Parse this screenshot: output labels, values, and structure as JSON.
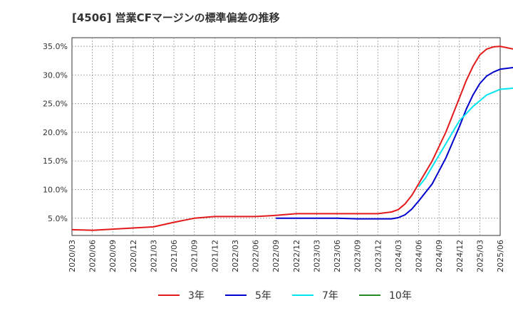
{
  "chart_data": {
    "type": "line",
    "title": "[4506]  営業CFマージンの標準偏差の推移",
    "xlabel": "",
    "ylabel": "",
    "ylim": [
      2.0,
      36.5
    ],
    "grid": true,
    "legend_position": "bottom",
    "y_ticks": [
      "5.0%",
      "10.0%",
      "15.0%",
      "20.0%",
      "25.0%",
      "30.0%",
      "35.0%"
    ],
    "y_tick_values": [
      5,
      10,
      15,
      20,
      25,
      30,
      35
    ],
    "x_ticks": [
      "2020/03",
      "2020/06",
      "2020/09",
      "2020/12",
      "2021/03",
      "2021/06",
      "2021/09",
      "2021/12",
      "2022/03",
      "2022/06",
      "2022/09",
      "2022/12",
      "2023/03",
      "2023/06",
      "2023/09",
      "2023/12",
      "2024/03",
      "2024/06",
      "2024/09",
      "2024/12",
      "2025/03",
      "2025/06"
    ],
    "series": [
      {
        "name": "3年",
        "color": "#e31a1c",
        "points": [
          [
            "2020/03",
            3.0
          ],
          [
            "2020/06",
            2.9
          ],
          [
            "2020/09",
            3.1
          ],
          [
            "2020/12",
            3.3
          ],
          [
            "2021/03",
            3.5
          ],
          [
            "2021/06",
            4.3
          ],
          [
            "2021/09",
            5.0
          ],
          [
            "2021/12",
            5.3
          ],
          [
            "2022/03",
            5.3
          ],
          [
            "2022/06",
            5.3
          ],
          [
            "2022/09",
            5.5
          ],
          [
            "2022/12",
            5.8
          ],
          [
            "2023/03",
            5.8
          ],
          [
            "2023/06",
            5.8
          ],
          [
            "2023/09",
            5.8
          ],
          [
            "2023/12",
            5.8
          ],
          [
            "2024/02",
            6.1
          ],
          [
            "2024/03",
            6.5
          ],
          [
            "2024/04",
            7.5
          ],
          [
            "2024/05",
            9.0
          ],
          [
            "2024/06",
            11.0
          ],
          [
            "2024/08",
            15.0
          ],
          [
            "2024/10",
            20.0
          ],
          [
            "2024/12",
            26.0
          ],
          [
            "2025/01",
            29.0
          ],
          [
            "2025/02",
            31.5
          ],
          [
            "2025/03",
            33.5
          ],
          [
            "2025/04",
            34.5
          ],
          [
            "2025/05",
            34.9
          ],
          [
            "2025/06",
            35.0
          ],
          [
            "2025/08",
            34.5
          ],
          [
            "2025/10",
            33.8
          ],
          [
            "2025/12",
            33.0
          ],
          [
            "2026/03",
            32.7
          ],
          [
            "2026/06",
            32.6
          ]
        ]
      },
      {
        "name": "5年",
        "color": "#0000cc",
        "points": [
          [
            "2022/09",
            5.0
          ],
          [
            "2022/12",
            5.0
          ],
          [
            "2023/03",
            5.0
          ],
          [
            "2023/06",
            5.0
          ],
          [
            "2023/09",
            4.9
          ],
          [
            "2023/12",
            4.9
          ],
          [
            "2024/02",
            4.9
          ],
          [
            "2024/03",
            5.1
          ],
          [
            "2024/04",
            5.6
          ],
          [
            "2024/05",
            6.6
          ],
          [
            "2024/06",
            8.0
          ],
          [
            "2024/08",
            11.0
          ],
          [
            "2024/10",
            15.5
          ],
          [
            "2024/12",
            21.0
          ],
          [
            "2025/01",
            24.0
          ],
          [
            "2025/02",
            26.5
          ],
          [
            "2025/03",
            28.5
          ],
          [
            "2025/04",
            29.8
          ],
          [
            "2025/05",
            30.5
          ],
          [
            "2025/06",
            31.0
          ],
          [
            "2025/08",
            31.3
          ],
          [
            "2025/10",
            31.2
          ],
          [
            "2025/12",
            31.0
          ],
          [
            "2026/03",
            30.8
          ],
          [
            "2026/06",
            30.7
          ]
        ]
      },
      {
        "name": "7年",
        "color": "#00e5ee",
        "points": [
          [
            "2024/06",
            10.5
          ],
          [
            "2024/07",
            12.0
          ],
          [
            "2024/08",
            14.0
          ],
          [
            "2024/10",
            18.0
          ],
          [
            "2024/12",
            22.0
          ],
          [
            "2025/02",
            24.5
          ],
          [
            "2025/03",
            25.5
          ],
          [
            "2025/04",
            26.5
          ],
          [
            "2025/05",
            27.0
          ],
          [
            "2025/06",
            27.5
          ],
          [
            "2025/08",
            27.7
          ],
          [
            "2025/10",
            27.7
          ],
          [
            "2025/12",
            27.6
          ],
          [
            "2026/03",
            27.5
          ],
          [
            "2026/06",
            27.4
          ]
        ]
      },
      {
        "name": "10年",
        "color": "#228b22",
        "points": []
      }
    ]
  }
}
